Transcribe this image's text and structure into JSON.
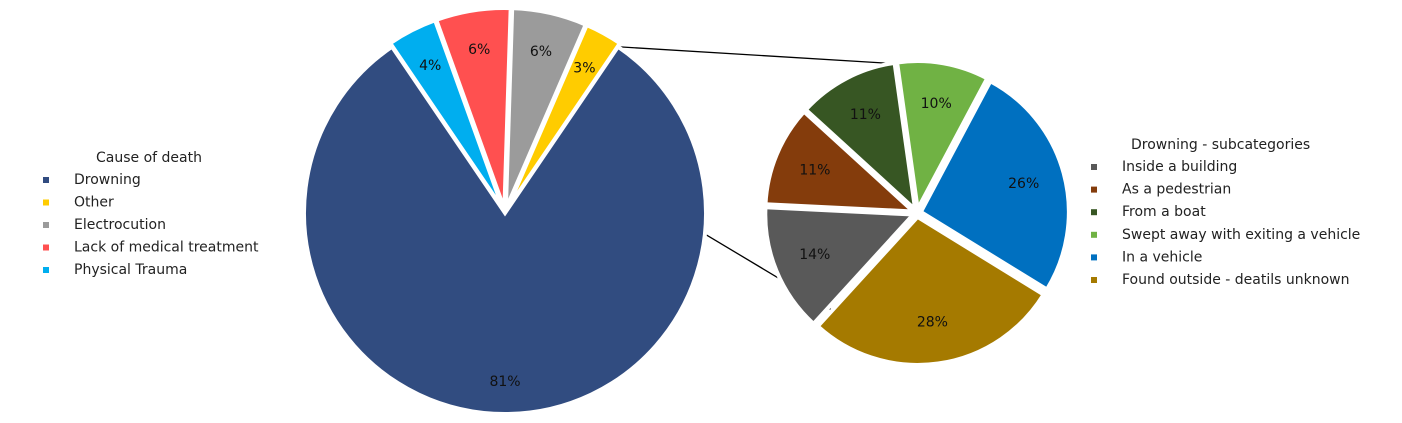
{
  "chart_data": [
    {
      "type": "pie",
      "legend_title": "Cause of death",
      "legend_position": "left",
      "slices": [
        {
          "label": "Drowning",
          "value": 81,
          "value_label": "81%",
          "color": "#314c80",
          "exploded": false
        },
        {
          "label": "Physical Trauma",
          "value": 4,
          "value_label": "4%",
          "color": "#00aeef",
          "exploded": true
        },
        {
          "label": "Lack of medical treatment",
          "value": 6,
          "value_label": "6%",
          "color": "#ff5050",
          "exploded": true
        },
        {
          "label": "Electrocution",
          "value": 6,
          "value_label": "6%",
          "color": "#9b9b9b",
          "exploded": true
        },
        {
          "label": "Other",
          "value": 3,
          "value_label": "3%",
          "color": "#ffcc00",
          "exploded": true
        }
      ],
      "legend_order": [
        "Drowning",
        "Other",
        "Electrocution",
        "Lack of medical treatment",
        "Physical Trauma"
      ]
    },
    {
      "type": "pie",
      "legend_title": "Drowning - subcategories",
      "legend_position": "right",
      "slices": [
        {
          "label": "Swept away with exiting a vehicle",
          "value": 10,
          "value_label": "10%",
          "color": "#70b244"
        },
        {
          "label": "In a vehicle",
          "value": 26,
          "value_label": "26%",
          "color": "#0070c0"
        },
        {
          "label": "Found outside - deatils unknown",
          "value": 28,
          "value_label": "28%",
          "color": "#a57a00"
        },
        {
          "label": "Inside a building",
          "value": 14,
          "value_label": "14%",
          "color": "#595959"
        },
        {
          "label": "As a pedestrian",
          "value": 11,
          "value_label": "11%",
          "color": "#843c0c"
        },
        {
          "label": "From a boat",
          "value": 11,
          "value_label": "11%",
          "color": "#375623"
        }
      ],
      "legend_order": [
        "Inside a building",
        "As a pedestrian",
        "From a boat",
        "Swept away with exiting a vehicle",
        "In a vehicle",
        "Found outside - deatils unknown"
      ]
    }
  ]
}
